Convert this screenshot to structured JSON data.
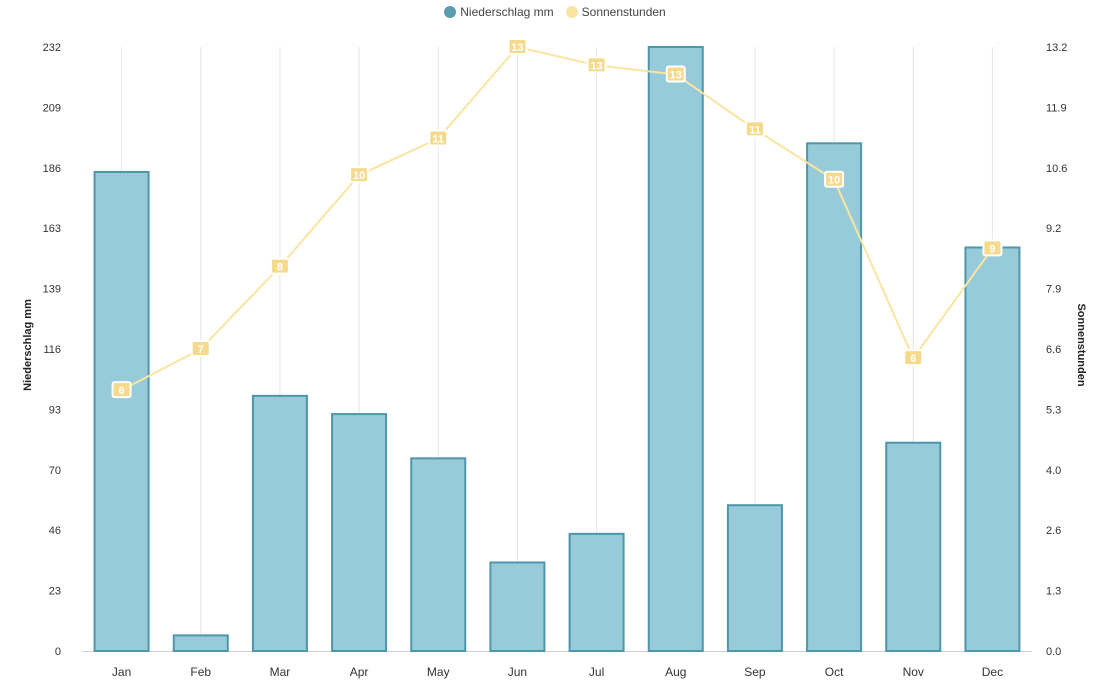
{
  "legend": {
    "series1_label": "Niederschlag mm",
    "series2_label": "Sonnenstunden"
  },
  "colors": {
    "bar_fill": "#97cbd9",
    "bar_stroke": "#4d96ab",
    "legend_bar": "#5a9cb0",
    "line": "#fbe4a0",
    "label_bg": "#f5da8c",
    "grid": "#e6e6e6",
    "axis_text": "#333333"
  },
  "chart_data": {
    "type": "bar+line",
    "categories": [
      "Jan",
      "Feb",
      "Mar",
      "Apr",
      "May",
      "Jun",
      "Jul",
      "Aug",
      "Sep",
      "Oct",
      "Nov",
      "Dec"
    ],
    "series": [
      {
        "name": "Niederschlag mm",
        "type": "bar",
        "axis": "left",
        "values": [
          184,
          6,
          98,
          91,
          74,
          34,
          45,
          232,
          56,
          195,
          80,
          155
        ]
      },
      {
        "name": "Sonnenstunden",
        "type": "line",
        "axis": "right",
        "values": [
          5.7,
          6.6,
          8.4,
          10.4,
          11.2,
          13.2,
          12.8,
          12.6,
          11.4,
          10.3,
          6.4,
          8.8
        ],
        "labels": [
          "6",
          "7",
          "8",
          "10",
          "11",
          "13",
          "13",
          "13",
          "11",
          "10",
          "6",
          "9"
        ]
      }
    ],
    "ylabel_left": "Niederschlag mm",
    "ylabel_right": "Sonnenstunden",
    "ylim_left": [
      0,
      232
    ],
    "ylim_right": [
      0,
      13.2
    ],
    "yticks_left": [
      "0",
      "23",
      "46",
      "70",
      "93",
      "116",
      "139",
      "163",
      "186",
      "209",
      "232"
    ],
    "yticks_right": [
      "0.0",
      "1.3",
      "2.6",
      "4.0",
      "5.3",
      "6.6",
      "7.9",
      "9.2",
      "10.6",
      "11.9",
      "13.2"
    ],
    "grid": "vertical",
    "legend_position": "top-center"
  }
}
